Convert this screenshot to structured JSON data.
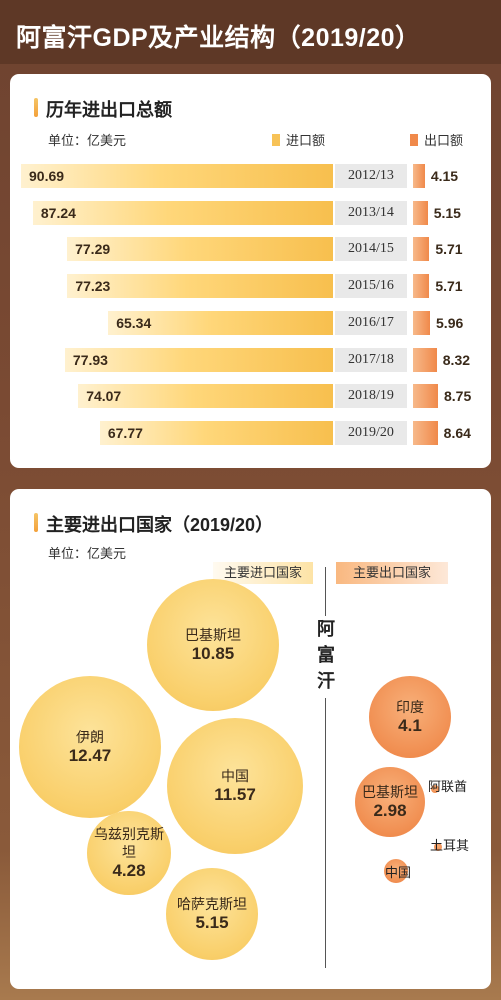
{
  "header": {
    "title": "阿富汗GDP及产业结构（2019/20）"
  },
  "section1": {
    "title": "历年进出口总额",
    "unit": "单位：亿美元",
    "legend": [
      {
        "label": "进口额",
        "color": "#f7c257"
      },
      {
        "label": "出口额",
        "color": "#f0894a"
      }
    ]
  },
  "section2": {
    "title": "主要进出口国家（2019/20）",
    "unit": "单位：亿美元",
    "import_tag": "主要进口国家",
    "export_tag": "主要出口国家",
    "country": [
      "阿",
      "富",
      "汗"
    ]
  },
  "chart_data": [
    {
      "type": "bar",
      "categories": [
        "2012/13",
        "2013/14",
        "2014/15",
        "2015/16",
        "2016/17",
        "2017/18",
        "2018/19",
        "2019/20"
      ],
      "series": [
        {
          "name": "进口额",
          "values": [
            90.69,
            87.24,
            77.29,
            77.23,
            65.34,
            77.93,
            74.07,
            67.77
          ]
        },
        {
          "name": "出口额",
          "values": [
            4.15,
            5.15,
            5.71,
            5.71,
            5.96,
            8.32,
            8.75,
            8.64
          ]
        }
      ]
    },
    {
      "type": "scatter",
      "import_countries": [
        {
          "name": "巴基斯坦",
          "value": 10.85
        },
        {
          "name": "伊朗",
          "value": 12.47
        },
        {
          "name": "中国",
          "value": 11.57
        },
        {
          "name": "乌兹别克斯坦",
          "value": 4.28
        },
        {
          "name": "哈萨克斯坦",
          "value": 5.15
        }
      ],
      "export_countries": [
        {
          "name": "印度",
          "value": "4.1"
        },
        {
          "name": "巴基斯坦",
          "value": "2.98"
        },
        {
          "name": "阿联酋",
          "value": ""
        },
        {
          "name": "土耳其",
          "value": ""
        },
        {
          "name": "中国",
          "value": ""
        }
      ]
    }
  ]
}
